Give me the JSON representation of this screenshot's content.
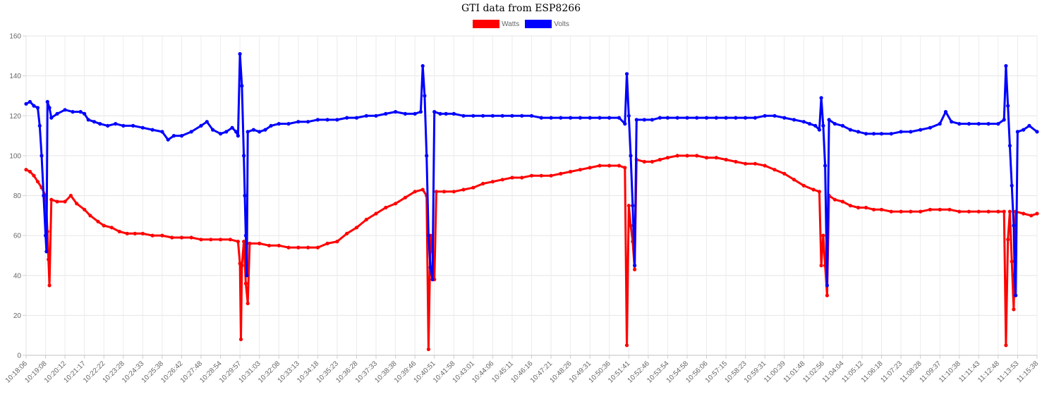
{
  "chart_data": {
    "type": "line",
    "title": "GTI data from ESP8266",
    "xlabel": "",
    "ylabel": "",
    "ylim": [
      0,
      160
    ],
    "yticks": [
      0,
      20,
      40,
      60,
      80,
      100,
      120,
      140,
      160
    ],
    "grid": true,
    "legend_position": "top",
    "x": [
      "10:18:06",
      "10:19:08",
      "10:20:12",
      "10:21:17",
      "10:22:22",
      "10:23:28",
      "10:24:33",
      "10:25:38",
      "10:26:42",
      "10:27:48",
      "10:28:54",
      "10:29:57",
      "10:31:03",
      "10:32:08",
      "10:33:13",
      "10:34:18",
      "10:35:23",
      "10:36:28",
      "10:37:33",
      "10:38:38",
      "10:39:46",
      "10:40:51",
      "10:41:58",
      "10:43:01",
      "10:44:06",
      "10:45:11",
      "10:46:16",
      "10:47:21",
      "10:48:26",
      "10:49:31",
      "10:50:36",
      "10:51:41",
      "10:52:46",
      "10:53:54",
      "10:54:58",
      "10:56:06",
      "10:57:15",
      "10:58:23",
      "10:59:31",
      "11:00:39",
      "11:01:48",
      "11:02:56",
      "11:04:04",
      "11:05:12",
      "11:06:18",
      "11:07:23",
      "11:08:28",
      "11:09:37",
      "11:10:38",
      "11:11:43",
      "11:12:48",
      "11:13:53",
      "11:15:38"
    ],
    "series": [
      {
        "name": "Watts",
        "color": "#ff0000",
        "points": [
          [
            0,
            93
          ],
          [
            0.2,
            92
          ],
          [
            0.4,
            90
          ],
          [
            0.6,
            87
          ],
          [
            0.8,
            84
          ],
          [
            1.0,
            80
          ],
          [
            1.1,
            62
          ],
          [
            1.15,
            48
          ],
          [
            1.2,
            35
          ],
          [
            1.3,
            78
          ],
          [
            1.6,
            77
          ],
          [
            2.0,
            77
          ],
          [
            2.3,
            80
          ],
          [
            2.6,
            76
          ],
          [
            3.0,
            73
          ],
          [
            3.3,
            70
          ],
          [
            3.7,
            67
          ],
          [
            4.0,
            65
          ],
          [
            4.4,
            64
          ],
          [
            4.8,
            62
          ],
          [
            5.2,
            61
          ],
          [
            5.6,
            61
          ],
          [
            6.0,
            61
          ],
          [
            6.5,
            60
          ],
          [
            7.0,
            60
          ],
          [
            7.5,
            59
          ],
          [
            8.0,
            59
          ],
          [
            8.5,
            59
          ],
          [
            9.0,
            58
          ],
          [
            9.5,
            58
          ],
          [
            10.0,
            58
          ],
          [
            10.5,
            58
          ],
          [
            10.9,
            57
          ],
          [
            11.0,
            46
          ],
          [
            11.05,
            8
          ],
          [
            11.1,
            45
          ],
          [
            11.2,
            57
          ],
          [
            11.3,
            36
          ],
          [
            11.4,
            26
          ],
          [
            11.5,
            56
          ],
          [
            12.0,
            56
          ],
          [
            12.5,
            55
          ],
          [
            13.0,
            55
          ],
          [
            13.5,
            54
          ],
          [
            14.0,
            54
          ],
          [
            14.5,
            54
          ],
          [
            15.0,
            54
          ],
          [
            15.5,
            56
          ],
          [
            16.0,
            57
          ],
          [
            16.5,
            61
          ],
          [
            17.0,
            64
          ],
          [
            17.5,
            68
          ],
          [
            18.0,
            71
          ],
          [
            18.5,
            74
          ],
          [
            19.0,
            76
          ],
          [
            19.5,
            79
          ],
          [
            20.0,
            82
          ],
          [
            20.4,
            83
          ],
          [
            20.6,
            80
          ],
          [
            20.7,
            3
          ],
          [
            20.8,
            60
          ],
          [
            20.9,
            52
          ],
          [
            21.0,
            38
          ],
          [
            21.1,
            82
          ],
          [
            21.5,
            82
          ],
          [
            22.0,
            82
          ],
          [
            22.5,
            83
          ],
          [
            23.0,
            84
          ],
          [
            23.5,
            86
          ],
          [
            24.0,
            87
          ],
          [
            24.5,
            88
          ],
          [
            25.0,
            89
          ],
          [
            25.5,
            89
          ],
          [
            26.0,
            90
          ],
          [
            26.5,
            90
          ],
          [
            27.0,
            90
          ],
          [
            27.5,
            91
          ],
          [
            28.0,
            92
          ],
          [
            28.5,
            93
          ],
          [
            29.0,
            94
          ],
          [
            29.5,
            95
          ],
          [
            30.0,
            95
          ],
          [
            30.5,
            95
          ],
          [
            30.8,
            94
          ],
          [
            30.9,
            5
          ],
          [
            31.0,
            75
          ],
          [
            31.1,
            65
          ],
          [
            31.2,
            57
          ],
          [
            31.3,
            43
          ],
          [
            31.4,
            98
          ],
          [
            31.8,
            97
          ],
          [
            32.2,
            97
          ],
          [
            32.6,
            98
          ],
          [
            33.0,
            99
          ],
          [
            33.5,
            100
          ],
          [
            34.0,
            100
          ],
          [
            34.5,
            100
          ],
          [
            35.0,
            99
          ],
          [
            35.5,
            99
          ],
          [
            36.0,
            98
          ],
          [
            36.5,
            97
          ],
          [
            37.0,
            96
          ],
          [
            37.5,
            96
          ],
          [
            38.0,
            95
          ],
          [
            38.5,
            93
          ],
          [
            39.0,
            91
          ],
          [
            39.5,
            88
          ],
          [
            40.0,
            85
          ],
          [
            40.5,
            83
          ],
          [
            40.8,
            82
          ],
          [
            40.9,
            45
          ],
          [
            41.0,
            60
          ],
          [
            41.1,
            45
          ],
          [
            41.2,
            30
          ],
          [
            41.3,
            80
          ],
          [
            41.6,
            78
          ],
          [
            42.0,
            77
          ],
          [
            42.4,
            75
          ],
          [
            42.8,
            74
          ],
          [
            43.2,
            74
          ],
          [
            43.6,
            73
          ],
          [
            44.0,
            73
          ],
          [
            44.5,
            72
          ],
          [
            45.0,
            72
          ],
          [
            45.5,
            72
          ],
          [
            46.0,
            72
          ],
          [
            46.5,
            73
          ],
          [
            47.0,
            73
          ],
          [
            47.5,
            73
          ],
          [
            48.0,
            72
          ],
          [
            48.5,
            72
          ],
          [
            49.0,
            72
          ],
          [
            49.5,
            72
          ],
          [
            50.0,
            72
          ],
          [
            50.3,
            72
          ],
          [
            50.4,
            5
          ],
          [
            50.5,
            58
          ],
          [
            50.6,
            72
          ],
          [
            50.7,
            47
          ],
          [
            50.8,
            23
          ],
          [
            50.9,
            72
          ],
          [
            51.3,
            71
          ],
          [
            51.7,
            70
          ],
          [
            52.0,
            71
          ]
        ]
      },
      {
        "name": "Volts",
        "color": "#0000ff",
        "points": [
          [
            0,
            126
          ],
          [
            0.2,
            127
          ],
          [
            0.4,
            125
          ],
          [
            0.6,
            124
          ],
          [
            0.7,
            115
          ],
          [
            0.8,
            100
          ],
          [
            0.9,
            80
          ],
          [
            1.0,
            60
          ],
          [
            1.05,
            52
          ],
          [
            1.1,
            127
          ],
          [
            1.2,
            124
          ],
          [
            1.3,
            119
          ],
          [
            1.6,
            121
          ],
          [
            2.0,
            123
          ],
          [
            2.4,
            122
          ],
          [
            2.8,
            122
          ],
          [
            3.0,
            121
          ],
          [
            3.2,
            118
          ],
          [
            3.5,
            117
          ],
          [
            3.8,
            116
          ],
          [
            4.2,
            115
          ],
          [
            4.6,
            116
          ],
          [
            5.0,
            115
          ],
          [
            5.5,
            115
          ],
          [
            6.0,
            114
          ],
          [
            6.5,
            113
          ],
          [
            7.0,
            112
          ],
          [
            7.3,
            108
          ],
          [
            7.6,
            110
          ],
          [
            8.0,
            110
          ],
          [
            8.5,
            112
          ],
          [
            9.0,
            115
          ],
          [
            9.3,
            117
          ],
          [
            9.6,
            113
          ],
          [
            10.0,
            111
          ],
          [
            10.3,
            112
          ],
          [
            10.6,
            114
          ],
          [
            10.8,
            112
          ],
          [
            10.9,
            110
          ],
          [
            11.0,
            151
          ],
          [
            11.1,
            135
          ],
          [
            11.2,
            100
          ],
          [
            11.25,
            80
          ],
          [
            11.3,
            60
          ],
          [
            11.35,
            40
          ],
          [
            11.4,
            112
          ],
          [
            11.7,
            113
          ],
          [
            12.0,
            112
          ],
          [
            12.3,
            113
          ],
          [
            12.6,
            115
          ],
          [
            13.0,
            116
          ],
          [
            13.5,
            116
          ],
          [
            14.0,
            117
          ],
          [
            14.5,
            117
          ],
          [
            15.0,
            118
          ],
          [
            15.5,
            118
          ],
          [
            16.0,
            118
          ],
          [
            16.5,
            119
          ],
          [
            17.0,
            119
          ],
          [
            17.5,
            120
          ],
          [
            18.0,
            120
          ],
          [
            18.5,
            121
          ],
          [
            19.0,
            122
          ],
          [
            19.5,
            121
          ],
          [
            20.0,
            121
          ],
          [
            20.3,
            122
          ],
          [
            20.4,
            145
          ],
          [
            20.5,
            130
          ],
          [
            20.6,
            100
          ],
          [
            20.7,
            60
          ],
          [
            20.8,
            44
          ],
          [
            20.9,
            38
          ],
          [
            21.0,
            122
          ],
          [
            21.3,
            121
          ],
          [
            21.6,
            121
          ],
          [
            22.0,
            121
          ],
          [
            22.5,
            120
          ],
          [
            23.0,
            120
          ],
          [
            23.5,
            120
          ],
          [
            24.0,
            120
          ],
          [
            24.5,
            120
          ],
          [
            25.0,
            120
          ],
          [
            25.5,
            120
          ],
          [
            26.0,
            120
          ],
          [
            26.5,
            119
          ],
          [
            27.0,
            119
          ],
          [
            27.5,
            119
          ],
          [
            28.0,
            119
          ],
          [
            28.5,
            119
          ],
          [
            29.0,
            119
          ],
          [
            29.5,
            119
          ],
          [
            30.0,
            119
          ],
          [
            30.5,
            119
          ],
          [
            30.8,
            116
          ],
          [
            30.9,
            141
          ],
          [
            31.0,
            120
          ],
          [
            31.1,
            100
          ],
          [
            31.2,
            75
          ],
          [
            31.3,
            45
          ],
          [
            31.4,
            118
          ],
          [
            31.8,
            118
          ],
          [
            32.2,
            118
          ],
          [
            32.6,
            119
          ],
          [
            33.0,
            119
          ],
          [
            33.5,
            119
          ],
          [
            34.0,
            119
          ],
          [
            34.5,
            119
          ],
          [
            35.0,
            119
          ],
          [
            35.5,
            119
          ],
          [
            36.0,
            119
          ],
          [
            36.5,
            119
          ],
          [
            37.0,
            119
          ],
          [
            37.5,
            119
          ],
          [
            38.0,
            120
          ],
          [
            38.5,
            120
          ],
          [
            39.0,
            119
          ],
          [
            39.5,
            118
          ],
          [
            40.0,
            117
          ],
          [
            40.3,
            116
          ],
          [
            40.6,
            115
          ],
          [
            40.8,
            113
          ],
          [
            40.9,
            129
          ],
          [
            41.0,
            115
          ],
          [
            41.1,
            95
          ],
          [
            41.2,
            35
          ],
          [
            41.3,
            118
          ],
          [
            41.6,
            116
          ],
          [
            42.0,
            115
          ],
          [
            42.4,
            113
          ],
          [
            42.8,
            112
          ],
          [
            43.2,
            111
          ],
          [
            43.6,
            111
          ],
          [
            44.0,
            111
          ],
          [
            44.5,
            111
          ],
          [
            45.0,
            112
          ],
          [
            45.5,
            112
          ],
          [
            46.0,
            113
          ],
          [
            46.5,
            114
          ],
          [
            47.0,
            116
          ],
          [
            47.3,
            122
          ],
          [
            47.6,
            117
          ],
          [
            48.0,
            116
          ],
          [
            48.5,
            116
          ],
          [
            49.0,
            116
          ],
          [
            49.5,
            116
          ],
          [
            50.0,
            116
          ],
          [
            50.3,
            118
          ],
          [
            50.4,
            145
          ],
          [
            50.5,
            125
          ],
          [
            50.6,
            105
          ],
          [
            50.7,
            85
          ],
          [
            50.8,
            65
          ],
          [
            50.85,
            40
          ],
          [
            50.9,
            30
          ],
          [
            51.0,
            112
          ],
          [
            51.3,
            113
          ],
          [
            51.6,
            115
          ],
          [
            52.0,
            112
          ]
        ]
      }
    ]
  }
}
